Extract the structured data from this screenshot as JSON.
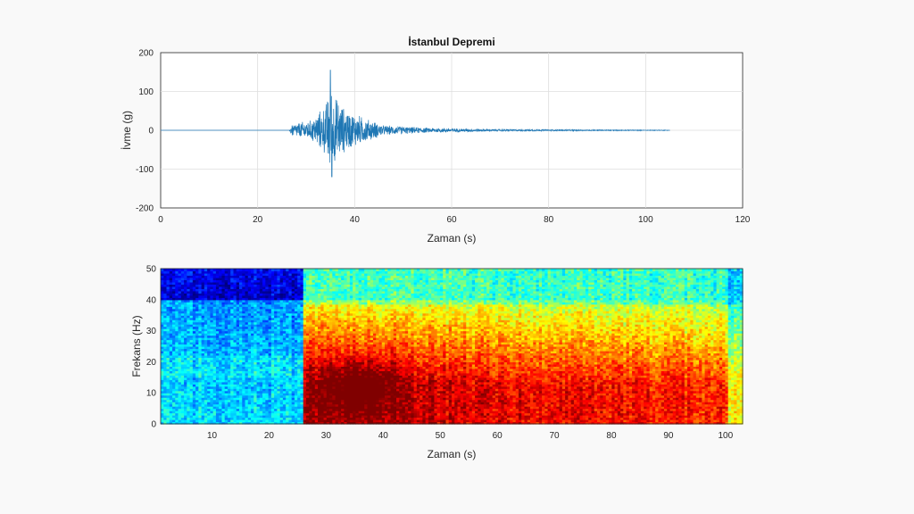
{
  "chart_data": [
    {
      "type": "line",
      "title": "İstanbul Depremi",
      "xlabel": "Zaman (s)",
      "ylabel": "İvme (g)",
      "xlim": [
        0,
        120
      ],
      "ylim": [
        -200,
        200
      ],
      "xticks": [
        0,
        20,
        40,
        60,
        80,
        100,
        120
      ],
      "yticks": [
        200,
        100,
        0,
        -100,
        -200
      ],
      "grid": true,
      "line_color": "#1f77b4",
      "signal": {
        "start_s": 0,
        "end_s": 105,
        "onset_s": 27,
        "peak_time_s": 35,
        "peak_max": 155,
        "peak_min": -120,
        "envelope": [
          {
            "x": 0,
            "amp": 0
          },
          {
            "x": 26.5,
            "amp": 0
          },
          {
            "x": 27,
            "amp": 18
          },
          {
            "x": 31,
            "amp": 28
          },
          {
            "x": 34,
            "amp": 70
          },
          {
            "x": 35,
            "amp": 130
          },
          {
            "x": 36,
            "amp": 95
          },
          {
            "x": 38,
            "amp": 60
          },
          {
            "x": 42,
            "amp": 35
          },
          {
            "x": 46,
            "amp": 14
          },
          {
            "x": 55,
            "amp": 7
          },
          {
            "x": 70,
            "amp": 3
          },
          {
            "x": 90,
            "amp": 1.5
          },
          {
            "x": 105,
            "amp": 0.8
          }
        ]
      }
    },
    {
      "type": "heatmap",
      "title": "",
      "xlabel": "Zaman (s)",
      "ylabel": "Frekans (Hz)",
      "xlim": [
        1,
        103
      ],
      "ylim": [
        0,
        50
      ],
      "xticks": [
        10,
        20,
        30,
        40,
        50,
        60,
        70,
        80,
        90,
        100
      ],
      "yticks": [
        50,
        40,
        30,
        20,
        10,
        0
      ],
      "colormap": "jet",
      "event_onset_s": 25.5,
      "energy_peak": {
        "time_s": 36,
        "freq_hz": 12
      },
      "intensity_profile": {
        "pre_event_low_freq": 0.35,
        "pre_event_high_freq": 0.08,
        "peak": 1.0,
        "late_low_freq": 0.7,
        "high_freq_band_above_40hz": 0.4
      }
    }
  ]
}
